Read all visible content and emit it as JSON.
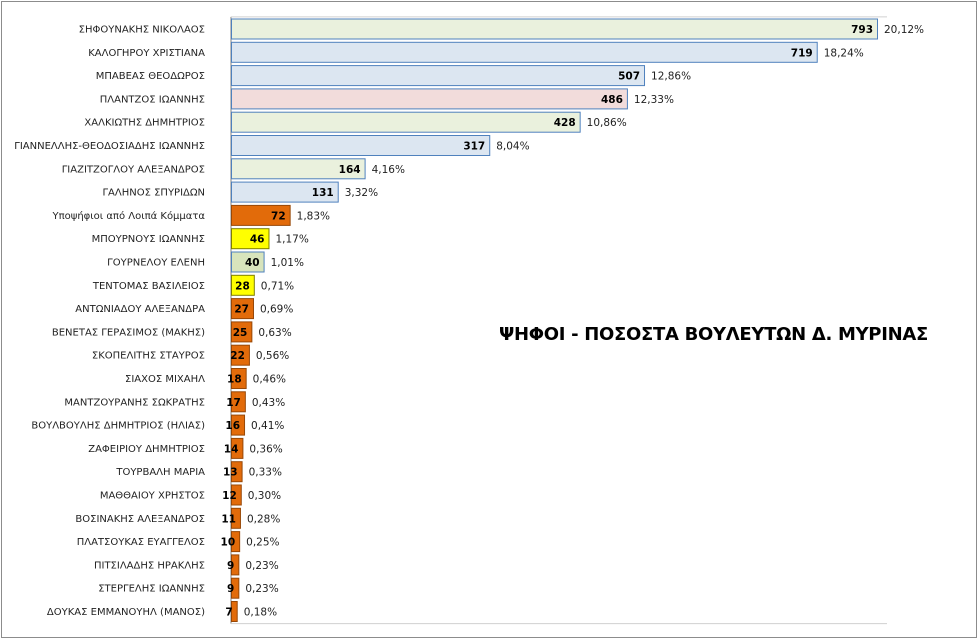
{
  "chart_data": {
    "type": "bar",
    "orientation": "horizontal",
    "title": "ΨΗΦΟΙ - ΠΟΣΟΣΤΑ ΒΟΥΛΕΥΤΩΝ Δ. ΜΥΡΙΝΑΣ",
    "xlim": [
      0,
      793
    ],
    "grid": false,
    "legend": "none",
    "colors": {
      "green": "#eaf1dd",
      "blue": "#dce6f1",
      "pink": "#f2dcdb",
      "orange": "#e26b0a",
      "yellow": "#ffff00",
      "olive": "#d8e4bc",
      "border": "#4f81bd"
    },
    "bars": [
      {
        "category": "ΣΗΦΟΥΝΑΚΗΣ ΝΙΚΟΛΑΟΣ",
        "value": 793,
        "percent": "20,12%",
        "color": "green"
      },
      {
        "category": "ΚΑΛΟΓΗΡΟΥ ΧΡΙΣΤΙΑΝΑ",
        "value": 719,
        "percent": "18,24%",
        "color": "blue"
      },
      {
        "category": "ΜΠΑΒΕΑΣ ΘΕΟΔΩΡΟΣ",
        "value": 507,
        "percent": "12,86%",
        "color": "blue"
      },
      {
        "category": "ΠΛΑΝΤΖΟΣ ΙΩΑΝΝΗΣ",
        "value": 486,
        "percent": "12,33%",
        "color": "pink"
      },
      {
        "category": "ΧΑΛΚΙΩΤΗΣ ΔΗΜΗΤΡΙΟΣ",
        "value": 428,
        "percent": "10,86%",
        "color": "green"
      },
      {
        "category": "ΓΙΑΝΝΕΛΛΗΣ-ΘΕΟΔΟΣΙΑΔΗΣ ΙΩΑΝΝΗΣ",
        "value": 317,
        "percent": "8,04%",
        "color": "blue"
      },
      {
        "category": "ΓΙΑΖΙΤΖΟΓΛΟΥ ΑΛΕΞΑΝΔΡΟΣ",
        "value": 164,
        "percent": "4,16%",
        "color": "green"
      },
      {
        "category": "ΓΑΛΗΝΟΣ ΣΠΥΡΙΔΩΝ",
        "value": 131,
        "percent": "3,32%",
        "color": "blue"
      },
      {
        "category": "Υποψήφιοι από Λοιπά Κόμματα",
        "value": 72,
        "percent": "1,83%",
        "color": "orange"
      },
      {
        "category": "ΜΠΟΥΡΝΟΥΣ ΙΩΑΝΝΗΣ",
        "value": 46,
        "percent": "1,17%",
        "color": "yellow"
      },
      {
        "category": "ΓΟΥΡΝΕΛΟΥ ΕΛΕΝΗ",
        "value": 40,
        "percent": "1,01%",
        "color": "olive"
      },
      {
        "category": "ΤΕΝΤΟΜΑΣ ΒΑΣΙΛΕΙΟΣ",
        "value": 28,
        "percent": "0,71%",
        "color": "yellow"
      },
      {
        "category": "ΑΝΤΩΝΙΑΔΟΥ ΑΛΕΞΑΝΔΡΑ",
        "value": 27,
        "percent": "0,69%",
        "color": "orange"
      },
      {
        "category": "ΒΕΝΕΤΑΣ ΓΕΡΑΣΙΜΟΣ (ΜΑΚΗΣ)",
        "value": 25,
        "percent": "0,63%",
        "color": "orange"
      },
      {
        "category": "ΣΚΟΠΕΛΙΤΗΣ ΣΤΑΥΡΟΣ",
        "value": 22,
        "percent": "0,56%",
        "color": "orange"
      },
      {
        "category": "ΣΙΑΧΟΣ ΜΙΧΑΗΛ",
        "value": 18,
        "percent": "0,46%",
        "color": "orange"
      },
      {
        "category": "ΜΑΝΤΖΟΥΡΑΝΗΣ ΣΩΚΡΑΤΗΣ",
        "value": 17,
        "percent": "0,43%",
        "color": "orange"
      },
      {
        "category": "ΒΟΥΛΒΟΥΛΗΣ ΔΗΜΗΤΡΙΟΣ (ΗΛΙΑΣ)",
        "value": 16,
        "percent": "0,41%",
        "color": "orange"
      },
      {
        "category": "ΖΑΦΕΙΡΙΟΥ ΔΗΜΗΤΡΙΟΣ",
        "value": 14,
        "percent": "0,36%",
        "color": "orange"
      },
      {
        "category": "ΤΟΥΡΒΑΛΗ ΜΑΡΙΑ",
        "value": 13,
        "percent": "0,33%",
        "color": "orange"
      },
      {
        "category": "ΜΑΘΘΑΙΟΥ ΧΡΗΣΤΟΣ",
        "value": 12,
        "percent": "0,30%",
        "color": "orange"
      },
      {
        "category": "ΒΟΣΙΝΑΚΗΣ ΑΛΕΞΑΝΔΡΟΣ",
        "value": 11,
        "percent": "0,28%",
        "color": "orange"
      },
      {
        "category": "ΠΛΑΤΣΟΥΚΑΣ ΕΥΑΓΓΕΛΟΣ",
        "value": 10,
        "percent": "0,25%",
        "color": "orange"
      },
      {
        "category": "ΠΙΤΣΙΛΑΔΗΣ ΗΡΑΚΛΗΣ",
        "value": 9,
        "percent": "0,23%",
        "color": "orange"
      },
      {
        "category": "ΣΤΕΡΓΕΛΗΣ ΙΩΑΝΝΗΣ",
        "value": 9,
        "percent": "0,23%",
        "color": "orange"
      },
      {
        "category": "ΔΟΥΚΑΣ ΕΜΜΑΝΟΥΗΛ (ΜΑΝΟΣ)",
        "value": 7,
        "percent": "0,18%",
        "color": "orange"
      }
    ]
  }
}
